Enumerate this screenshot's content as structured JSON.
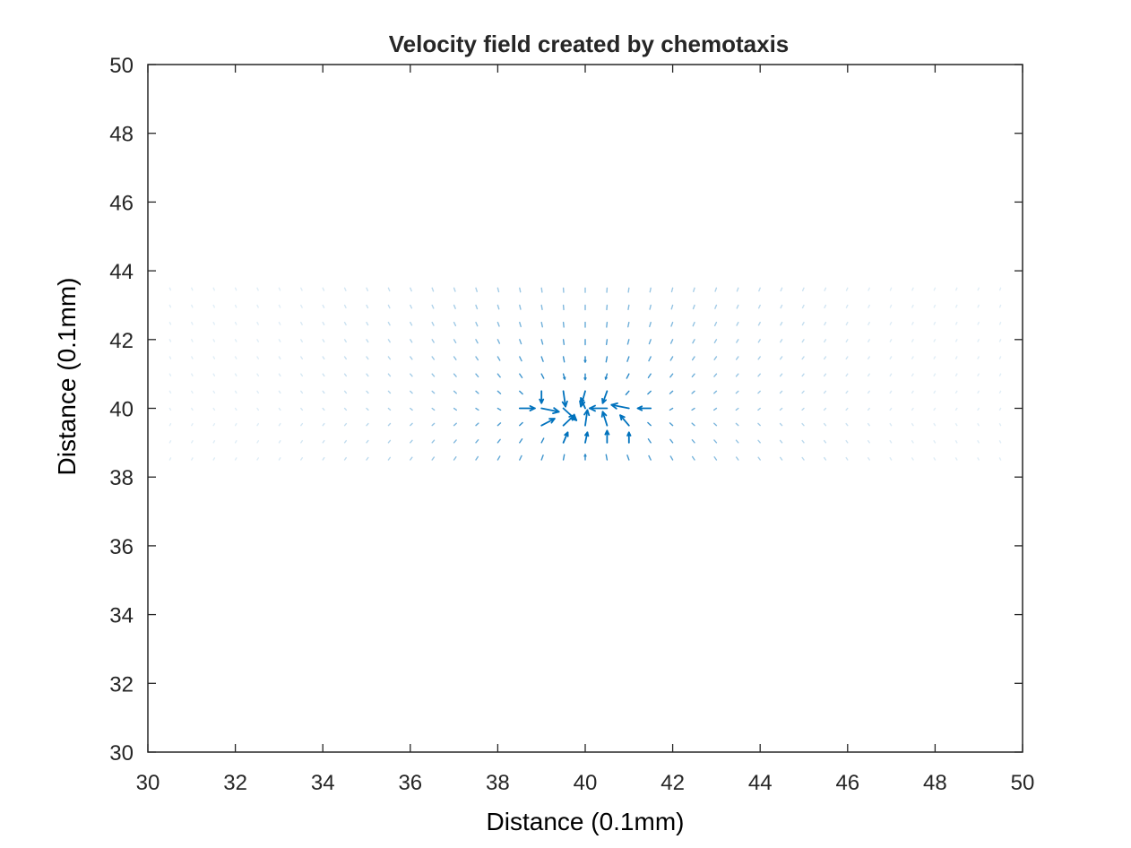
{
  "chart_data": {
    "type": "quiver",
    "title": "Velocity field created by chemotaxis",
    "xlabel": "Distance (0.1mm)",
    "ylabel": "Distance (0.1mm)",
    "xlim": [
      30,
      50
    ],
    "ylim": [
      30,
      50
    ],
    "xticks": [
      "30",
      "32",
      "34",
      "36",
      "38",
      "40",
      "42",
      "44",
      "46",
      "48",
      "50"
    ],
    "yticks": [
      "30",
      "32",
      "34",
      "36",
      "38",
      "40",
      "42",
      "44",
      "46",
      "48",
      "50"
    ],
    "grid": false,
    "box": true,
    "grid_spacing": 0.5,
    "sample_region": {
      "x": [
        30.5,
        49.5
      ],
      "y": [
        38.5,
        43.5
      ]
    },
    "center": [
      40,
      40
    ],
    "arrow_color": "#0072BD",
    "axis_color": "#262626",
    "vectors": [
      {
        "x": 39.0,
        "y": 40.5,
        "u": 0.0,
        "v": -0.35
      },
      {
        "x": 39.5,
        "y": 40.5,
        "u": 0.05,
        "v": -0.45
      },
      {
        "x": 40.0,
        "y": 40.5,
        "u": -0.1,
        "v": -0.45
      },
      {
        "x": 40.5,
        "y": 40.5,
        "u": -0.1,
        "v": -0.35
      },
      {
        "x": 38.5,
        "y": 40.0,
        "u": 0.35,
        "v": 0.0
      },
      {
        "x": 39.0,
        "y": 40.0,
        "u": 0.4,
        "v": -0.1
      },
      {
        "x": 39.5,
        "y": 40.0,
        "u": 0.3,
        "v": -0.35
      },
      {
        "x": 40.0,
        "y": 40.0,
        "u": -0.1,
        "v": 0.3
      },
      {
        "x": 40.5,
        "y": 40.0,
        "u": -0.4,
        "v": 0.0
      },
      {
        "x": 41.0,
        "y": 40.0,
        "u": -0.4,
        "v": 0.1
      },
      {
        "x": 41.5,
        "y": 40.0,
        "u": -0.3,
        "v": 0.0
      },
      {
        "x": 39.0,
        "y": 39.5,
        "u": 0.3,
        "v": 0.2
      },
      {
        "x": 39.5,
        "y": 39.5,
        "u": 0.25,
        "v": 0.3
      },
      {
        "x": 40.0,
        "y": 39.5,
        "u": 0.05,
        "v": 0.45
      },
      {
        "x": 40.5,
        "y": 39.5,
        "u": -0.1,
        "v": 0.4
      },
      {
        "x": 41.0,
        "y": 39.5,
        "u": -0.2,
        "v": 0.3
      },
      {
        "x": 39.5,
        "y": 39.0,
        "u": 0.1,
        "v": 0.3
      },
      {
        "x": 40.0,
        "y": 39.0,
        "u": 0.05,
        "v": 0.3
      },
      {
        "x": 40.5,
        "y": 39.0,
        "u": 0.0,
        "v": 0.35
      },
      {
        "x": 41.0,
        "y": 39.0,
        "u": 0.0,
        "v": 0.3
      }
    ]
  }
}
